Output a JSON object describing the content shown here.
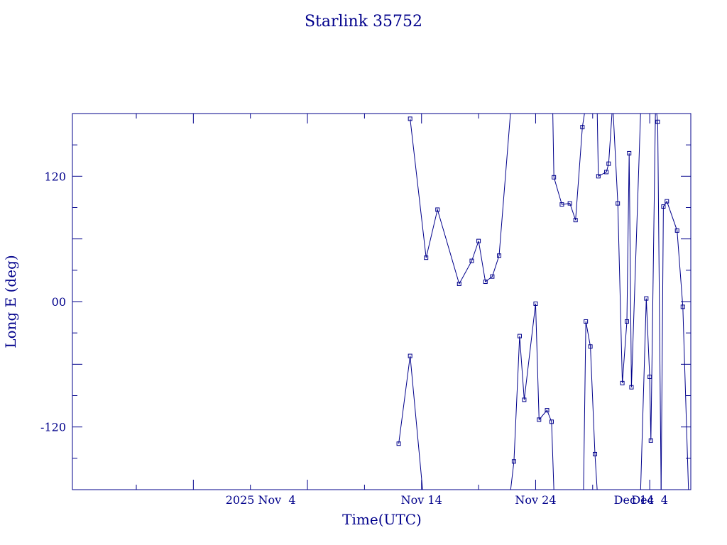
{
  "chart_data": {
    "type": "line",
    "title": "Starlink 35752",
    "xlabel": "Time(UTC)",
    "ylabel": "Long E (deg)",
    "x_tick_labels": [
      "2025 Nov  4",
      "Nov 14",
      "Nov 24",
      "Dec  4",
      "Dec 14"
    ],
    "y_tick_labels": [
      "120",
      "00",
      "-120"
    ],
    "y_tick_values": [
      120,
      0,
      -120
    ],
    "xlim": [
      -16.6,
      37.6
    ],
    "ylim": [
      -180,
      180
    ],
    "x_unit": "days after 2025 Nov 0 (UTC)",
    "grid": false,
    "color": "#00008b",
    "series": [
      {
        "values": [
          [
            12.0,
            -136.0
          ],
          [
            13.0,
            -52.0
          ],
          [
            14.1,
            -181.0
          ]
        ]
      },
      {
        "values": [
          [
            13.0,
            175.0
          ],
          [
            14.4,
            42.0
          ],
          [
            15.4,
            88.0
          ],
          [
            17.3,
            17.0
          ],
          [
            18.4,
            39.0
          ],
          [
            19.0,
            58.0
          ],
          [
            19.6,
            19.0
          ],
          [
            20.2,
            24.0
          ],
          [
            20.8,
            44.0
          ],
          [
            21.8,
            181.0
          ]
        ]
      },
      {
        "values": [
          [
            21.8,
            -181.0
          ],
          [
            22.1,
            -153.0
          ],
          [
            22.6,
            -33.0
          ],
          [
            23.0,
            -94.0
          ],
          [
            24.0,
            -2.0
          ],
          [
            24.3,
            -113.0
          ],
          [
            25.0,
            -104.0
          ],
          [
            25.4,
            -115.0
          ],
          [
            25.6,
            -181.0
          ]
        ]
      },
      {
        "values": [
          [
            25.5,
            181.0
          ],
          [
            25.6,
            119.0
          ],
          [
            26.3,
            93.0
          ],
          [
            27.0,
            94.0
          ],
          [
            27.5,
            78.0
          ],
          [
            28.1,
            167.0
          ],
          [
            28.3,
            181.0
          ]
        ]
      },
      {
        "values": [
          [
            28.2,
            -181.0
          ],
          [
            28.4,
            -19.0
          ],
          [
            28.8,
            -43.0
          ],
          [
            29.2,
            -146.0
          ],
          [
            29.4,
            -181.0
          ]
        ]
      },
      {
        "values": [
          [
            29.4,
            181.0
          ],
          [
            29.5,
            120.0
          ],
          [
            30.2,
            124.0
          ],
          [
            30.4,
            132.0
          ],
          [
            30.7,
            181.0
          ]
        ]
      },
      {
        "values": [
          [
            30.8,
            181.0
          ],
          [
            31.2,
            94.0
          ],
          [
            31.6,
            -78.0
          ],
          [
            32.0,
            -19.0
          ],
          [
            32.2,
            142.0
          ],
          [
            32.4,
            -82.0
          ],
          [
            33.2,
            181.0
          ]
        ]
      },
      {
        "values": [
          [
            33.2,
            -181.0
          ],
          [
            33.7,
            3.0
          ],
          [
            34.0,
            -72.0
          ],
          [
            34.1,
            -133.0
          ],
          [
            34.5,
            181.0
          ]
        ]
      },
      {
        "values": [
          [
            34.6,
            181.0
          ],
          [
            34.7,
            172.0
          ],
          [
            35.0,
            -181.0
          ]
        ]
      },
      {
        "values": [
          [
            35.0,
            -181.0
          ],
          [
            35.2,
            91.0
          ],
          [
            35.5,
            96.0
          ],
          [
            36.4,
            68.0
          ],
          [
            36.9,
            -5.0
          ],
          [
            37.4,
            -181.0
          ]
        ]
      }
    ]
  }
}
